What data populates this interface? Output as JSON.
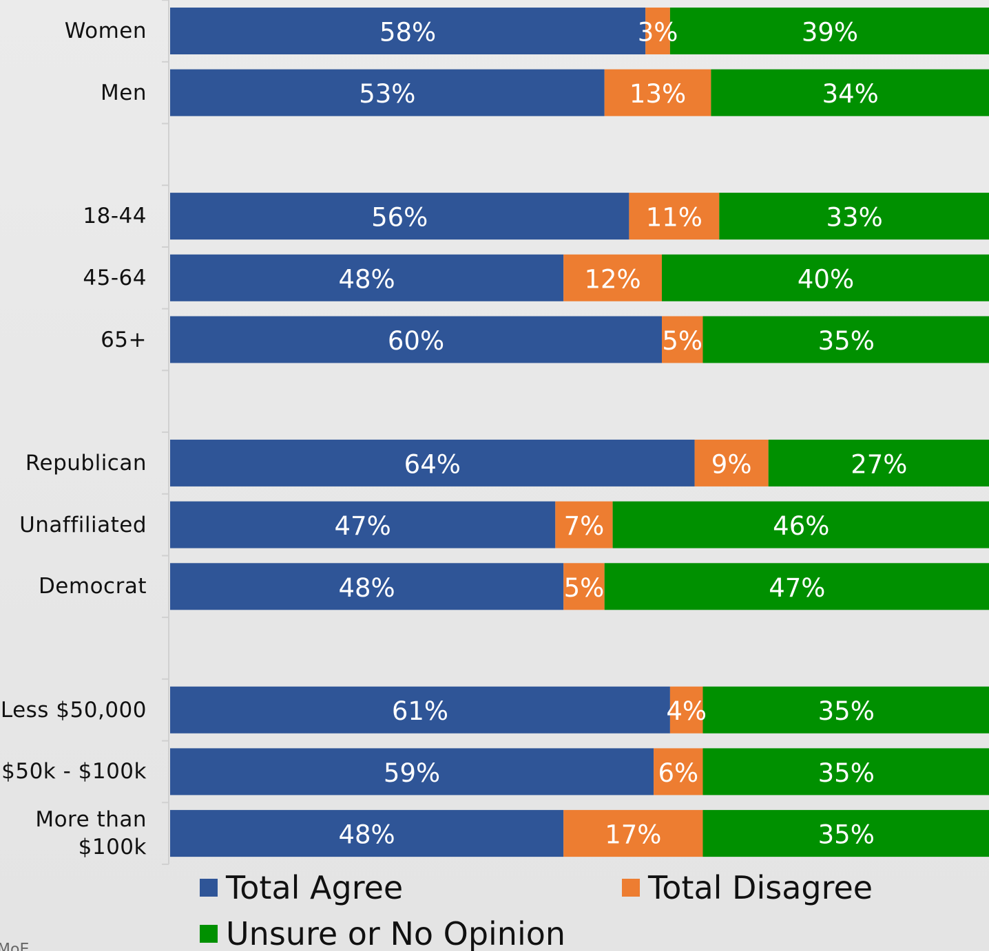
{
  "chart_data": {
    "type": "stacked-bar-horizontal",
    "categories": [
      "Women",
      "Men",
      null,
      "18-44",
      "45-64",
      "65+",
      null,
      "Republican",
      "Unaffiliated",
      "Democrat",
      null,
      "Less $50,000",
      "$50k - $100k",
      "More than $100k"
    ],
    "series": [
      {
        "name": "Total Agree",
        "color": "#2f5597",
        "values": [
          58,
          53,
          null,
          56,
          48,
          60,
          null,
          64,
          47,
          48,
          null,
          61,
          59,
          48
        ],
        "value_labels": [
          "58%",
          "53%",
          null,
          "56%",
          "48%",
          "60%",
          null,
          "64%",
          "47%",
          "48%",
          null,
          "61%",
          "59%",
          "48%"
        ]
      },
      {
        "name": "Total Disagree",
        "color": "#ed7d31",
        "values": [
          3,
          13,
          null,
          11,
          12,
          5,
          null,
          9,
          7,
          5,
          null,
          4,
          6,
          17
        ],
        "value_labels": [
          "3%",
          "13%",
          null,
          "11%",
          "12%",
          "5%",
          null,
          "9%",
          "7%",
          "5%",
          null,
          "4%",
          "6%",
          "17%"
        ]
      },
      {
        "name": "Unsure or No Opinion",
        "color": "#009000",
        "values": [
          39,
          34,
          null,
          33,
          40,
          35,
          null,
          27,
          46,
          47,
          null,
          35,
          35,
          35
        ],
        "value_labels": [
          "39%",
          "34%",
          null,
          "33%",
          "40%",
          "35%",
          null,
          "27%",
          "46%",
          "47%",
          null,
          "35%",
          "35%",
          "35%"
        ]
      }
    ],
    "xlim": [
      0,
      100
    ],
    "footnote": "MoE"
  }
}
